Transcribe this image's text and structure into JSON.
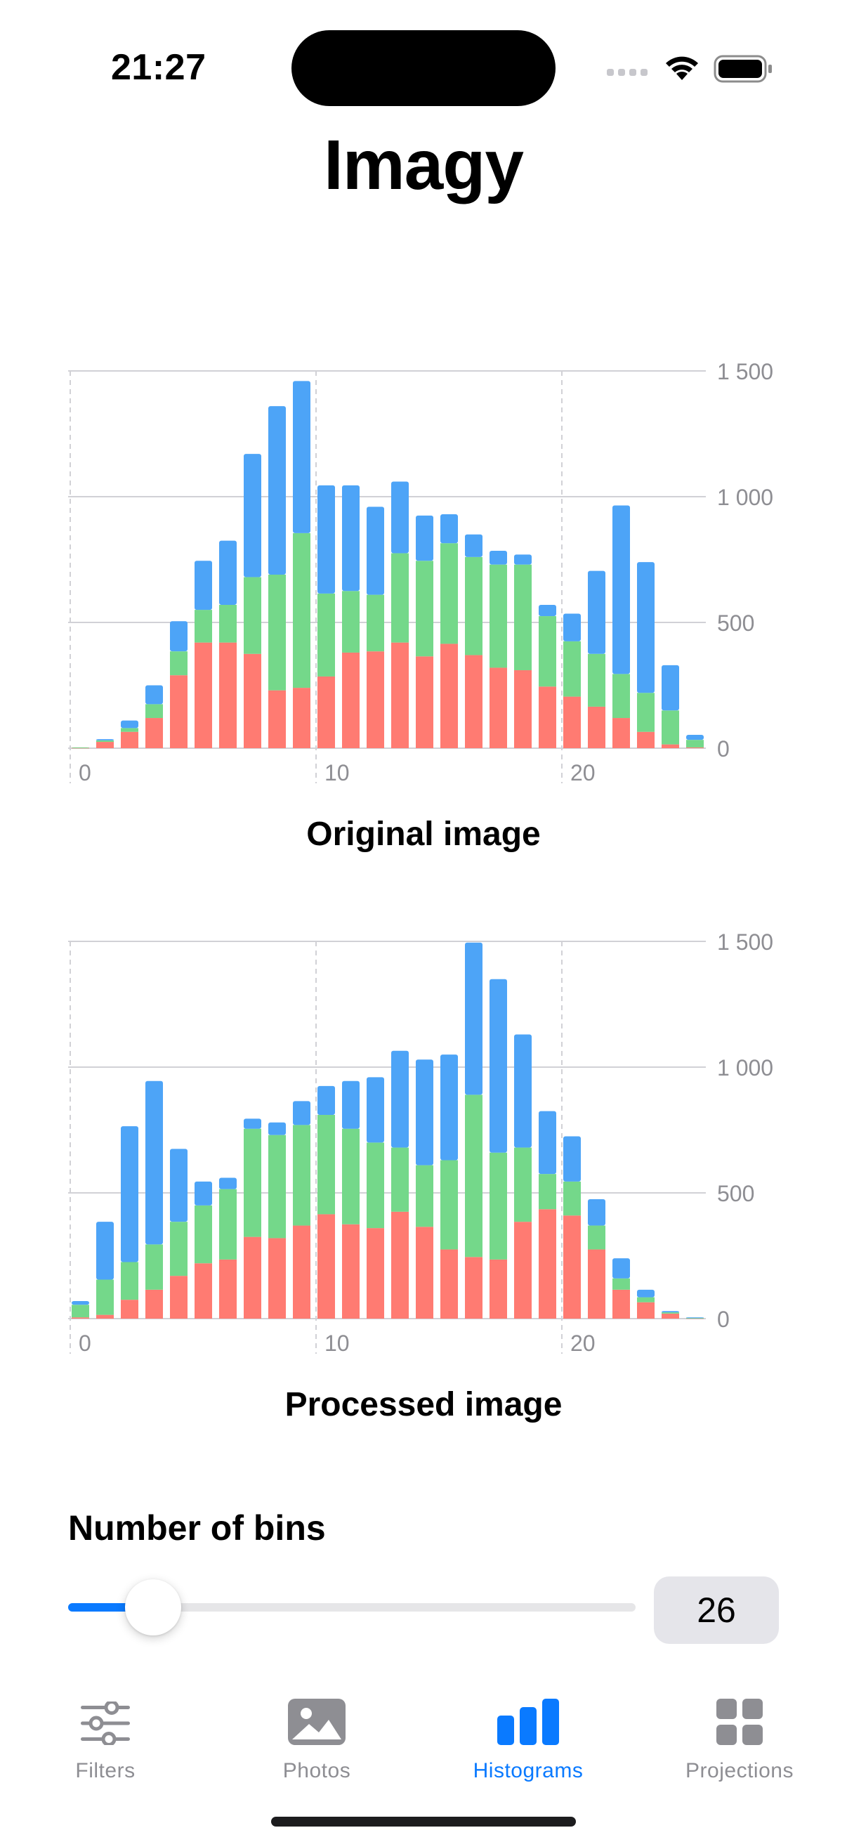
{
  "status_bar": {
    "time": "21:27"
  },
  "app": {
    "title": "Imagy"
  },
  "charts": [
    {
      "caption": "Original image",
      "chart_data": {
        "type": "bar",
        "stacked": true,
        "x": [
          0,
          1,
          2,
          3,
          4,
          5,
          6,
          7,
          8,
          9,
          10,
          11,
          12,
          13,
          14,
          15,
          16,
          17,
          18,
          19,
          20,
          21,
          22,
          23,
          24,
          25
        ],
        "series": [
          {
            "color": "#ff7b72",
            "values": [
              2,
              25,
              65,
              120,
              290,
              420,
              420,
              375,
              230,
              240,
              285,
              380,
              385,
              420,
              365,
              415,
              370,
              320,
              310,
              245,
              205,
              165,
              120,
              65,
              15,
              3
            ]
          },
          {
            "color": "#74d88a",
            "values": [
              1,
              6,
              15,
              55,
              95,
              130,
              150,
              305,
              460,
              615,
              330,
              245,
              225,
              355,
              380,
              400,
              390,
              410,
              420,
              280,
              220,
              210,
              175,
              155,
              135,
              30
            ]
          },
          {
            "color": "#4da4f7",
            "values": [
              0,
              5,
              30,
              75,
              120,
              195,
              255,
              490,
              670,
              605,
              430,
              420,
              350,
              285,
              180,
              115,
              90,
              55,
              40,
              45,
              110,
              330,
              670,
              520,
              180,
              20
            ]
          }
        ],
        "x_ticks": [
          "0",
          "10",
          "20"
        ],
        "y_ticks": [
          "0",
          "500",
          "1 000",
          "1 500"
        ],
        "ylim": [
          0,
          1500
        ],
        "grid": true
      }
    },
    {
      "caption": "Processed image",
      "chart_data": {
        "type": "bar",
        "stacked": true,
        "x": [
          0,
          1,
          2,
          3,
          4,
          5,
          6,
          7,
          8,
          9,
          10,
          11,
          12,
          13,
          14,
          15,
          16,
          17,
          18,
          19,
          20,
          21,
          22,
          23,
          24,
          25
        ],
        "series": [
          {
            "color": "#ff7b72",
            "values": [
              5,
              15,
              75,
              115,
              170,
              220,
              235,
              325,
              320,
              370,
              415,
              375,
              360,
              425,
              365,
              275,
              245,
              235,
              385,
              435,
              410,
              275,
              115,
              65,
              20,
              2
            ]
          },
          {
            "color": "#74d88a",
            "values": [
              50,
              140,
              150,
              180,
              215,
              230,
              280,
              430,
              410,
              400,
              395,
              380,
              340,
              255,
              245,
              355,
              645,
              425,
              295,
              140,
              135,
              95,
              45,
              20,
              5,
              1
            ]
          },
          {
            "color": "#4da4f7",
            "values": [
              15,
              230,
              540,
              650,
              290,
              95,
              45,
              40,
              50,
              95,
              115,
              190,
              260,
              385,
              420,
              420,
              605,
              690,
              450,
              250,
              180,
              105,
              80,
              30,
              5,
              2
            ]
          }
        ],
        "x_ticks": [
          "0",
          "10",
          "20"
        ],
        "y_ticks": [
          "0",
          "500",
          "1 000",
          "1 500"
        ],
        "ylim": [
          0,
          1500
        ],
        "grid": true
      }
    }
  ],
  "bins": {
    "label": "Number of bins",
    "value": "26",
    "slider_fraction": 0.15
  },
  "tabs": [
    {
      "label": "Filters",
      "icon": "sliders-icon",
      "active": false
    },
    {
      "label": "Photos",
      "icon": "photo-icon",
      "active": false
    },
    {
      "label": "Histograms",
      "icon": "chart-bar-icon",
      "active": true
    },
    {
      "label": "Projections",
      "icon": "grid-icon",
      "active": false
    }
  ],
  "colors": {
    "accent": "#0a7aff",
    "inactive": "#8e8e93"
  }
}
